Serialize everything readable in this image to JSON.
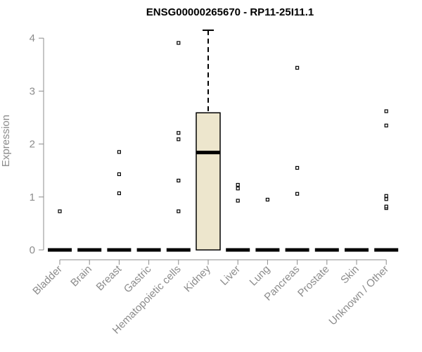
{
  "chart_data": {
    "type": "box",
    "title": "ENSG00000265670 - RP11-25I11.1",
    "xlabel": "",
    "ylabel": "Expression",
    "ylim": [
      0,
      4.15
    ],
    "yticks": [
      0,
      1,
      2,
      3,
      4
    ],
    "categories": [
      "Bladder",
      "Brain",
      "Breast",
      "Gastric",
      "Hematopoietic cells",
      "Kidney",
      "Liver",
      "Lung",
      "Pancreas",
      "Prostate",
      "Skin",
      "Unknown / Other"
    ],
    "boxes": [
      {
        "category": "Bladder",
        "min": 0,
        "q1": 0,
        "median": 0,
        "q3": 0,
        "max": 0,
        "outliers": [
          0.73
        ]
      },
      {
        "category": "Brain",
        "min": 0,
        "q1": 0,
        "median": 0,
        "q3": 0,
        "max": 0,
        "outliers": []
      },
      {
        "category": "Breast",
        "min": 0,
        "q1": 0,
        "median": 0,
        "q3": 0,
        "max": 0,
        "outliers": [
          1.07,
          1.43,
          1.85
        ]
      },
      {
        "category": "Gastric",
        "min": 0,
        "q1": 0,
        "median": 0,
        "q3": 0,
        "max": 0,
        "outliers": []
      },
      {
        "category": "Hematopoietic cells",
        "min": 0,
        "q1": 0,
        "median": 0,
        "q3": 0,
        "max": 0,
        "outliers": [
          0.73,
          1.31,
          2.09,
          2.21,
          3.91
        ]
      },
      {
        "category": "Kidney",
        "min": 0,
        "q1": 0,
        "median": 1.84,
        "q3": 2.59,
        "max": 4.15,
        "outliers": []
      },
      {
        "category": "Liver",
        "min": 0,
        "q1": 0,
        "median": 0,
        "q3": 0,
        "max": 0,
        "outliers": [
          0.93,
          1.16,
          1.23
        ]
      },
      {
        "category": "Lung",
        "min": 0,
        "q1": 0,
        "median": 0,
        "q3": 0,
        "max": 0,
        "outliers": [
          0.95
        ]
      },
      {
        "category": "Pancreas",
        "min": 0,
        "q1": 0,
        "median": 0,
        "q3": 0,
        "max": 0,
        "outliers": [
          1.06,
          1.55,
          3.44
        ]
      },
      {
        "category": "Prostate",
        "min": 0,
        "q1": 0,
        "median": 0,
        "q3": 0,
        "max": 0,
        "outliers": []
      },
      {
        "category": "Skin",
        "min": 0,
        "q1": 0,
        "median": 0,
        "q3": 0,
        "max": 0,
        "outliers": []
      },
      {
        "category": "Unknown / Other",
        "min": 0,
        "q1": 0,
        "median": 0,
        "q3": 0,
        "max": 0,
        "outliers": [
          0.79,
          0.82,
          0.96,
          1.02,
          2.35,
          2.62
        ]
      }
    ],
    "box_fill": "#ede6cd",
    "axis_color": "#8c8c8c",
    "grid": false,
    "legend": "none"
  }
}
